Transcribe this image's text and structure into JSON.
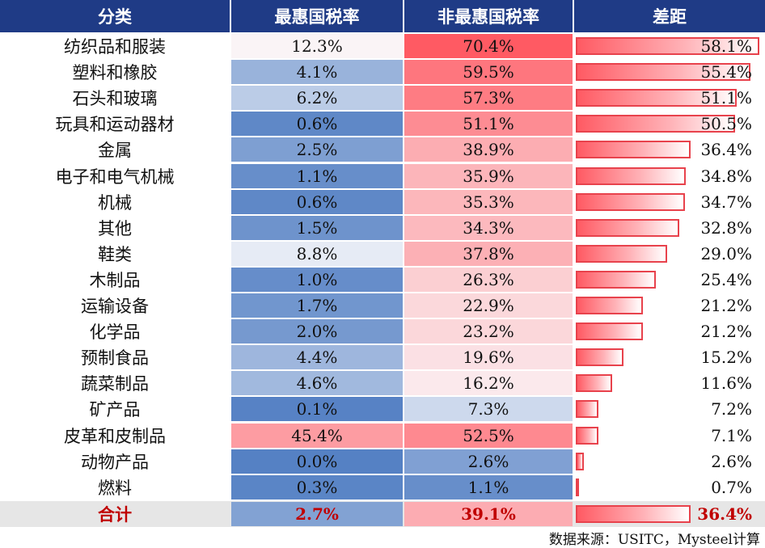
{
  "headers": [
    "分类",
    "最惠国税率",
    "非最惠国税率",
    "差距"
  ],
  "rows": [
    {
      "category": "纺织品和服装",
      "mfn": "12.3%",
      "nonmfn": "70.4%",
      "gap": "58.1%"
    },
    {
      "category": "塑料和橡胶",
      "mfn": "4.1%",
      "nonmfn": "59.5%",
      "gap": "55.4%"
    },
    {
      "category": "石头和玻璃",
      "mfn": "6.2%",
      "nonmfn": "57.3%",
      "gap": "51.1%"
    },
    {
      "category": "玩具和运动器材",
      "mfn": "0.6%",
      "nonmfn": "51.1%",
      "gap": "50.5%"
    },
    {
      "category": "金属",
      "mfn": "2.5%",
      "nonmfn": "38.9%",
      "gap": "36.4%"
    },
    {
      "category": "电子和电气机械",
      "mfn": "1.1%",
      "nonmfn": "35.9%",
      "gap": "34.8%"
    },
    {
      "category": "机械",
      "mfn": "0.6%",
      "nonmfn": "35.3%",
      "gap": "34.7%"
    },
    {
      "category": "其他",
      "mfn": "1.5%",
      "nonmfn": "34.3%",
      "gap": "32.8%"
    },
    {
      "category": "鞋类",
      "mfn": "8.8%",
      "nonmfn": "37.8%",
      "gap": "29.0%"
    },
    {
      "category": "木制品",
      "mfn": "1.0%",
      "nonmfn": "26.3%",
      "gap": "25.4%"
    },
    {
      "category": "运输设备",
      "mfn": "1.7%",
      "nonmfn": "22.9%",
      "gap": "21.2%"
    },
    {
      "category": "化学品",
      "mfn": "2.0%",
      "nonmfn": "23.2%",
      "gap": "21.2%"
    },
    {
      "category": "预制食品",
      "mfn": "4.4%",
      "nonmfn": "19.6%",
      "gap": "15.2%"
    },
    {
      "category": "蔬菜制品",
      "mfn": "4.6%",
      "nonmfn": "16.2%",
      "gap": "11.6%"
    },
    {
      "category": "矿产品",
      "mfn": "0.1%",
      "nonmfn": "7.3%",
      "gap": "7.2%"
    },
    {
      "category": "皮革和皮制品",
      "mfn": "45.4%",
      "nonmfn": "52.5%",
      "gap": "7.1%"
    },
    {
      "category": "动物产品",
      "mfn": "0.0%",
      "nonmfn": "2.6%",
      "gap": "2.6%"
    },
    {
      "category": "燃料",
      "mfn": "0.3%",
      "nonmfn": "1.1%",
      "gap": "0.7%"
    }
  ],
  "total": {
    "category": "合计",
    "mfn": "2.7%",
    "nonmfn": "39.1%",
    "gap": "36.4%"
  },
  "source": "数据来源：USITC，Mysteel计算",
  "colors": {
    "header": "#1f3b86",
    "blue": "#5581c4",
    "red": "#ff5a63",
    "total_text": "#c00000"
  },
  "chart_data": {
    "type": "table",
    "columns": [
      "分类",
      "最惠国税率",
      "非最惠国税率",
      "差距"
    ],
    "categories": [
      "纺织品和服装",
      "塑料和橡胶",
      "石头和玻璃",
      "玩具和运动器材",
      "金属",
      "电子和电气机械",
      "机械",
      "其他",
      "鞋类",
      "木制品",
      "运输设备",
      "化学品",
      "预制食品",
      "蔬菜制品",
      "矿产品",
      "皮革和皮制品",
      "动物产品",
      "燃料",
      "合计"
    ],
    "series": [
      {
        "name": "最惠国税率",
        "values": [
          12.3,
          4.1,
          6.2,
          0.6,
          2.5,
          1.1,
          0.6,
          1.5,
          8.8,
          1.0,
          1.7,
          2.0,
          4.4,
          4.6,
          0.1,
          45.4,
          0.0,
          0.3,
          2.7
        ]
      },
      {
        "name": "非最惠国税率",
        "values": [
          70.4,
          59.5,
          57.3,
          51.1,
          38.9,
          35.9,
          35.3,
          34.3,
          37.8,
          26.3,
          22.9,
          23.2,
          19.6,
          16.2,
          7.3,
          52.5,
          2.6,
          1.1,
          39.1
        ]
      },
      {
        "name": "差距",
        "values": [
          58.1,
          55.4,
          51.1,
          50.5,
          36.4,
          34.8,
          34.7,
          32.8,
          29.0,
          25.4,
          21.2,
          21.2,
          15.2,
          11.6,
          7.2,
          7.1,
          2.6,
          0.7,
          36.4
        ]
      }
    ]
  }
}
